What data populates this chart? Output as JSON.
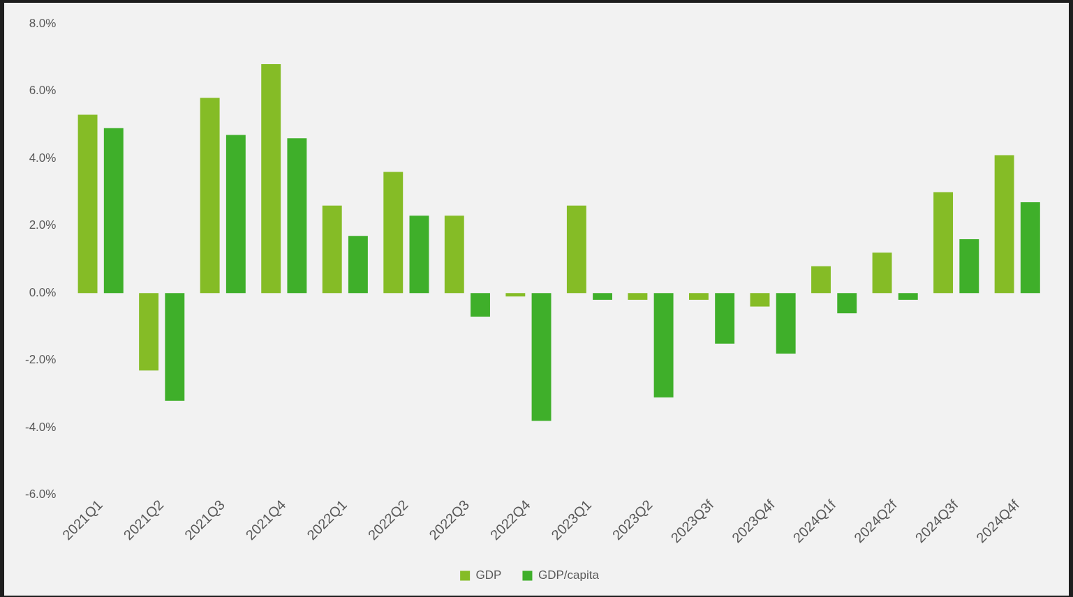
{
  "chart_data": {
    "type": "bar",
    "categories": [
      "2021Q1",
      "2021Q2",
      "2021Q3",
      "2021Q4",
      "2022Q1",
      "2022Q2",
      "2022Q3",
      "2022Q4",
      "2023Q1",
      "2023Q2",
      "2023Q3f",
      "2023Q4f",
      "2024Q1f",
      "2024Q2f",
      "2024Q3f",
      "2024Q4f"
    ],
    "series": [
      {
        "name": "GDP",
        "color": "#85bc26",
        "values": [
          5.3,
          -2.3,
          5.8,
          6.8,
          2.6,
          3.6,
          2.3,
          -0.1,
          2.6,
          -0.2,
          -0.2,
          -0.4,
          0.8,
          1.2,
          3.0,
          4.1
        ]
      },
      {
        "name": "GDP/capita",
        "color": "#3faf2a",
        "values": [
          4.9,
          -3.2,
          4.7,
          4.6,
          1.7,
          2.3,
          -0.7,
          -3.8,
          -0.2,
          -3.1,
          -1.5,
          -1.8,
          -0.6,
          -0.2,
          1.6,
          2.7
        ]
      }
    ],
    "ylim": [
      -6,
      8
    ],
    "yticks": [
      {
        "value": -6,
        "label": "-6.0%"
      },
      {
        "value": -4,
        "label": "-4.0%"
      },
      {
        "value": -2,
        "label": "-2.0%"
      },
      {
        "value": 0,
        "label": "0.0%"
      },
      {
        "value": 2,
        "label": "2.0%"
      },
      {
        "value": 4,
        "label": "4.0%"
      },
      {
        "value": 6,
        "label": "6.0%"
      },
      {
        "value": 8,
        "label": "8.0%"
      }
    ],
    "grid": false,
    "legend": "bottom"
  }
}
